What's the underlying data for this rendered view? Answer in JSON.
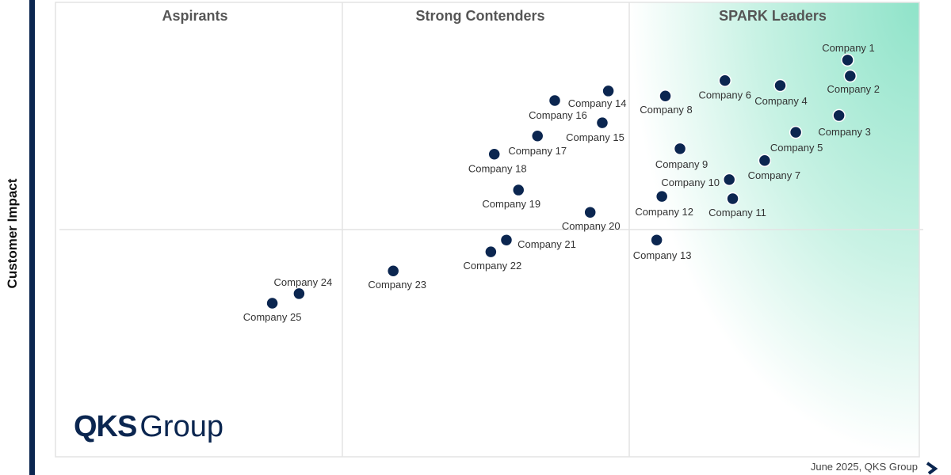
{
  "chart_data": {
    "type": "scatter",
    "title": "",
    "ylabel": "Customer Impact",
    "xlabel": "",
    "xlim": [
      0,
      100
    ],
    "ylim": [
      0,
      100
    ],
    "grid": false,
    "quadrants": [
      "Aspirants",
      "Strong Contenders",
      "SPARK Leaders"
    ],
    "colors": {
      "point": "#0b2650",
      "accent": "#9ce6cf",
      "bar": "#0b2650"
    },
    "points": [
      {
        "label": "Company 1",
        "x": 91.7,
        "y": 87.3
      },
      {
        "label": "Company 2",
        "x": 92.0,
        "y": 83.8
      },
      {
        "label": "Company 3",
        "x": 90.7,
        "y": 75.1
      },
      {
        "label": "Company 4",
        "x": 83.9,
        "y": 81.7
      },
      {
        "label": "Company 5",
        "x": 85.7,
        "y": 71.4
      },
      {
        "label": "Company 6",
        "x": 77.5,
        "y": 82.8
      },
      {
        "label": "Company 7",
        "x": 82.1,
        "y": 65.2
      },
      {
        "label": "Company 8",
        "x": 70.6,
        "y": 79.4
      },
      {
        "label": "Company 9",
        "x": 72.3,
        "y": 67.8
      },
      {
        "label": "Company 10",
        "x": 78.0,
        "y": 61.0
      },
      {
        "label": "Company 11",
        "x": 78.4,
        "y": 56.8
      },
      {
        "label": "Company 12",
        "x": 70.2,
        "y": 57.3
      },
      {
        "label": "Company 13",
        "x": 69.6,
        "y": 47.7
      },
      {
        "label": "Company 14",
        "x": 64.0,
        "y": 80.5
      },
      {
        "label": "Company 15",
        "x": 63.3,
        "y": 73.5
      },
      {
        "label": "Company 16",
        "x": 57.8,
        "y": 78.4
      },
      {
        "label": "Company 17",
        "x": 55.8,
        "y": 70.6
      },
      {
        "label": "Company 18",
        "x": 50.8,
        "y": 66.6
      },
      {
        "label": "Company 19",
        "x": 53.6,
        "y": 58.7
      },
      {
        "label": "Company 20",
        "x": 61.9,
        "y": 53.8
      },
      {
        "label": "Company 21",
        "x": 52.2,
        "y": 47.7
      },
      {
        "label": "Company 22",
        "x": 50.4,
        "y": 45.1
      },
      {
        "label": "Company 23",
        "x": 39.1,
        "y": 40.9
      },
      {
        "label": "Company 24",
        "x": 28.2,
        "y": 35.9
      },
      {
        "label": "Company 25",
        "x": 25.1,
        "y": 33.8
      }
    ]
  },
  "logo": {
    "bold": "QKS",
    "light": "Group"
  },
  "footer": "June 2025, QKS Group"
}
